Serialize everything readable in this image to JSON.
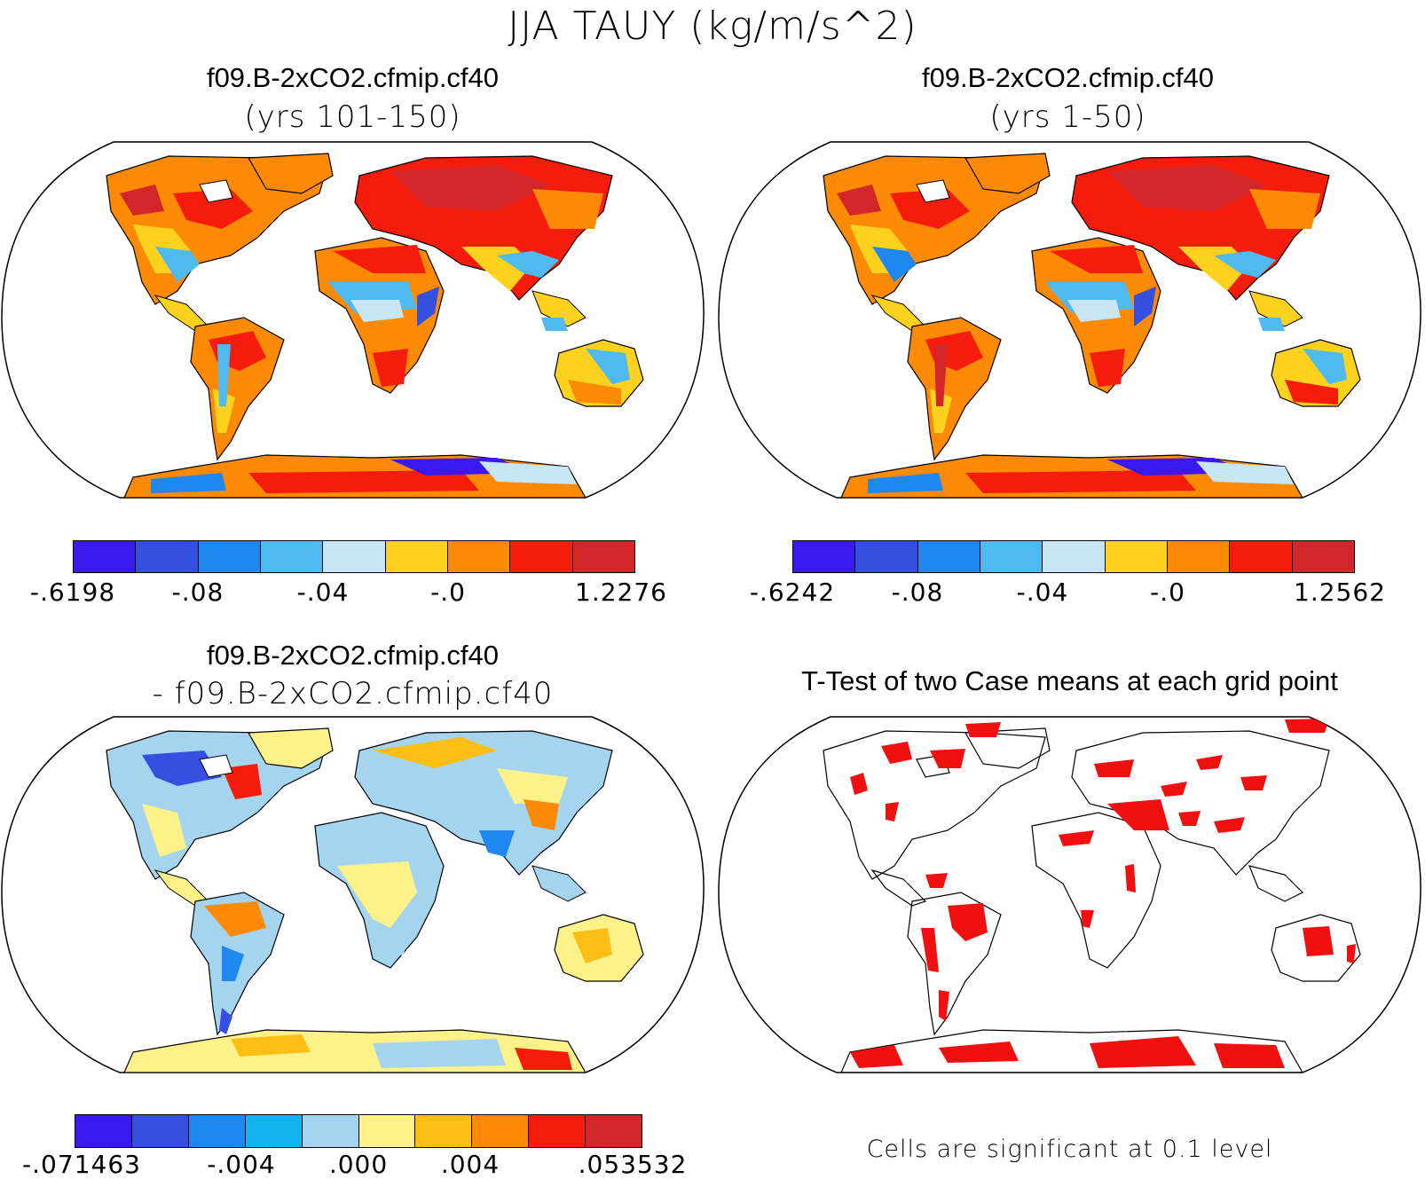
{
  "figure_title": "JJA TAUY (kg/m/s^2)",
  "panels": {
    "case1": {
      "title": "f09.B-2xCO2.cfmip.cf40",
      "subtitle": "(yrs 101-150)",
      "colorbar": {
        "colors": [
          "#3a18f0",
          "#3550de",
          "#1e88f0",
          "#4fbaf0",
          "#c8e6f6",
          "#fdd21e",
          "#fd8a04",
          "#f51c0c",
          "#d2262a"
        ],
        "labels": [
          "-.6198",
          "-.08",
          "-.04",
          "-.0",
          "1.2276"
        ]
      }
    },
    "case2": {
      "title": "f09.B-2xCO2.cfmip.cf40",
      "subtitle": "(yrs 1-50)",
      "colorbar": {
        "colors": [
          "#3a18f0",
          "#3550de",
          "#1e88f0",
          "#4fbaf0",
          "#c8e6f6",
          "#fdd21e",
          "#fd8a04",
          "#f51c0c",
          "#d2262a"
        ],
        "labels": [
          "-.6242",
          "-.08",
          "-.04",
          "-.0",
          "1.2562"
        ]
      }
    },
    "diff": {
      "title": "f09.B-2xCO2.cfmip.cf40",
      "subtitle": "- f09.B-2xCO2.cfmip.cf40",
      "colorbar": {
        "colors": [
          "#3a18f0",
          "#3550de",
          "#1e88f0",
          "#13b4f2",
          "#a4d4ee",
          "#fdf28a",
          "#fdbe16",
          "#fd8a04",
          "#f51c0c",
          "#d2262a"
        ],
        "labels": [
          "-.071463",
          "-.004",
          ".000",
          ".004",
          ".053532"
        ]
      }
    },
    "ttest": {
      "title": "T-Test of two Case means at each grid point",
      "footnote": "Cells are significant at 0.1 level",
      "significant_color": "#f01010"
    }
  }
}
